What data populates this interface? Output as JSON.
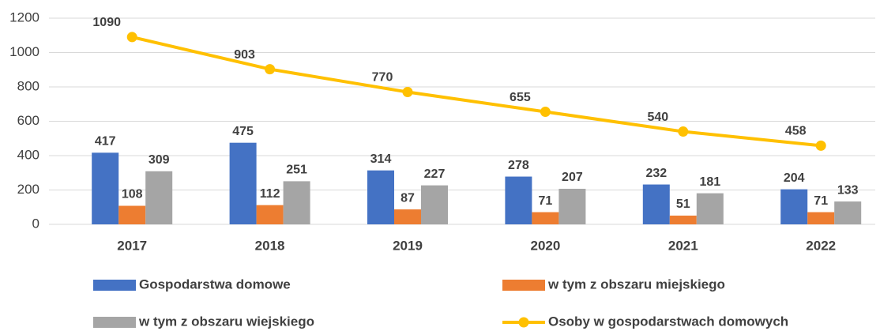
{
  "chart_data": {
    "type": "bar",
    "categories": [
      "2017",
      "2018",
      "2019",
      "2020",
      "2021",
      "2022"
    ],
    "series": [
      {
        "name": "Gospodarstwa domowe",
        "color": "#4472C4",
        "values": [
          417,
          475,
          314,
          278,
          232,
          204
        ]
      },
      {
        "name": "w tym z obszaru miejskiego",
        "color": "#ED7D31",
        "values": [
          108,
          112,
          87,
          71,
          51,
          71
        ]
      },
      {
        "name": "w tym z obszaru wiejskiego",
        "color": "#A5A5A5",
        "values": [
          309,
          251,
          227,
          207,
          181,
          133
        ]
      },
      {
        "name": "Osoby w gospodarstwach domowych",
        "color": "#FFC000",
        "type": "line",
        "values": [
          1090,
          903,
          770,
          655,
          540,
          458
        ]
      }
    ],
    "ylim": [
      0,
      1200
    ],
    "yticks": [
      0,
      200,
      400,
      600,
      800,
      1000,
      1200
    ],
    "grid": true,
    "legend": "bottom"
  }
}
